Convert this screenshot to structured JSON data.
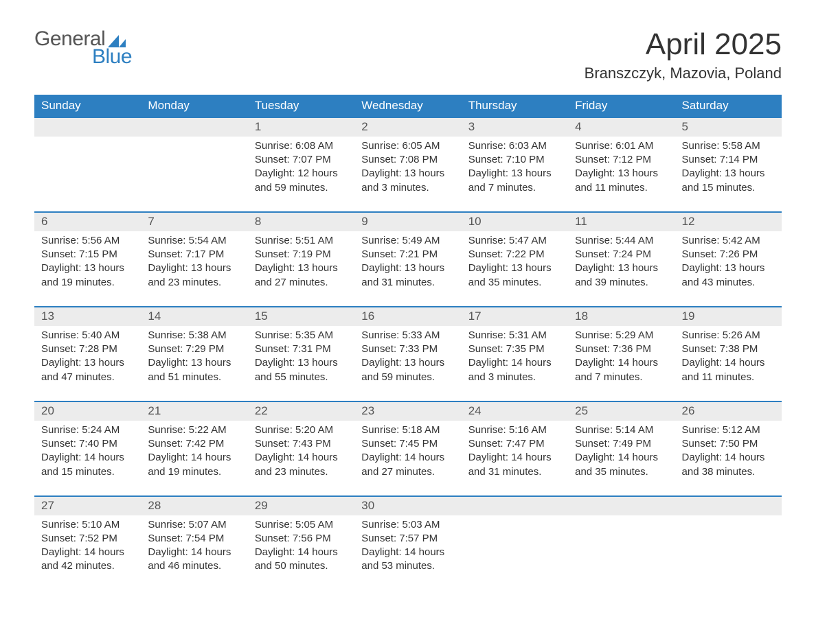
{
  "logo_text1": "General",
  "logo_text2": "Blue",
  "title": "April 2025",
  "location": "Branszczyk, Mazovia, Poland",
  "columns": [
    "Sunday",
    "Monday",
    "Tuesday",
    "Wednesday",
    "Thursday",
    "Friday",
    "Saturday"
  ],
  "colors": {
    "header_bg": "#2d7fc1",
    "header_text": "#ffffff",
    "daynum_bg": "#ececec",
    "border_top": "#2d7fc1",
    "text": "#333333",
    "logo_gray": "#555555",
    "logo_blue": "#2d7fc1",
    "background": "#ffffff"
  },
  "typography": {
    "title_fontsize": 44,
    "location_fontsize": 22,
    "th_fontsize": 17,
    "cell_fontsize": 15
  },
  "weeks": [
    {
      "days": [
        {
          "num": "",
          "sunrise": "",
          "sunset": "",
          "daylight": ""
        },
        {
          "num": "",
          "sunrise": "",
          "sunset": "",
          "daylight": ""
        },
        {
          "num": "1",
          "sunrise": "Sunrise: 6:08 AM",
          "sunset": "Sunset: 7:07 PM",
          "daylight": "Daylight: 12 hours and 59 minutes."
        },
        {
          "num": "2",
          "sunrise": "Sunrise: 6:05 AM",
          "sunset": "Sunset: 7:08 PM",
          "daylight": "Daylight: 13 hours and 3 minutes."
        },
        {
          "num": "3",
          "sunrise": "Sunrise: 6:03 AM",
          "sunset": "Sunset: 7:10 PM",
          "daylight": "Daylight: 13 hours and 7 minutes."
        },
        {
          "num": "4",
          "sunrise": "Sunrise: 6:01 AM",
          "sunset": "Sunset: 7:12 PM",
          "daylight": "Daylight: 13 hours and 11 minutes."
        },
        {
          "num": "5",
          "sunrise": "Sunrise: 5:58 AM",
          "sunset": "Sunset: 7:14 PM",
          "daylight": "Daylight: 13 hours and 15 minutes."
        }
      ]
    },
    {
      "days": [
        {
          "num": "6",
          "sunrise": "Sunrise: 5:56 AM",
          "sunset": "Sunset: 7:15 PM",
          "daylight": "Daylight: 13 hours and 19 minutes."
        },
        {
          "num": "7",
          "sunrise": "Sunrise: 5:54 AM",
          "sunset": "Sunset: 7:17 PM",
          "daylight": "Daylight: 13 hours and 23 minutes."
        },
        {
          "num": "8",
          "sunrise": "Sunrise: 5:51 AM",
          "sunset": "Sunset: 7:19 PM",
          "daylight": "Daylight: 13 hours and 27 minutes."
        },
        {
          "num": "9",
          "sunrise": "Sunrise: 5:49 AM",
          "sunset": "Sunset: 7:21 PM",
          "daylight": "Daylight: 13 hours and 31 minutes."
        },
        {
          "num": "10",
          "sunrise": "Sunrise: 5:47 AM",
          "sunset": "Sunset: 7:22 PM",
          "daylight": "Daylight: 13 hours and 35 minutes."
        },
        {
          "num": "11",
          "sunrise": "Sunrise: 5:44 AM",
          "sunset": "Sunset: 7:24 PM",
          "daylight": "Daylight: 13 hours and 39 minutes."
        },
        {
          "num": "12",
          "sunrise": "Sunrise: 5:42 AM",
          "sunset": "Sunset: 7:26 PM",
          "daylight": "Daylight: 13 hours and 43 minutes."
        }
      ]
    },
    {
      "days": [
        {
          "num": "13",
          "sunrise": "Sunrise: 5:40 AM",
          "sunset": "Sunset: 7:28 PM",
          "daylight": "Daylight: 13 hours and 47 minutes."
        },
        {
          "num": "14",
          "sunrise": "Sunrise: 5:38 AM",
          "sunset": "Sunset: 7:29 PM",
          "daylight": "Daylight: 13 hours and 51 minutes."
        },
        {
          "num": "15",
          "sunrise": "Sunrise: 5:35 AM",
          "sunset": "Sunset: 7:31 PM",
          "daylight": "Daylight: 13 hours and 55 minutes."
        },
        {
          "num": "16",
          "sunrise": "Sunrise: 5:33 AM",
          "sunset": "Sunset: 7:33 PM",
          "daylight": "Daylight: 13 hours and 59 minutes."
        },
        {
          "num": "17",
          "sunrise": "Sunrise: 5:31 AM",
          "sunset": "Sunset: 7:35 PM",
          "daylight": "Daylight: 14 hours and 3 minutes."
        },
        {
          "num": "18",
          "sunrise": "Sunrise: 5:29 AM",
          "sunset": "Sunset: 7:36 PM",
          "daylight": "Daylight: 14 hours and 7 minutes."
        },
        {
          "num": "19",
          "sunrise": "Sunrise: 5:26 AM",
          "sunset": "Sunset: 7:38 PM",
          "daylight": "Daylight: 14 hours and 11 minutes."
        }
      ]
    },
    {
      "days": [
        {
          "num": "20",
          "sunrise": "Sunrise: 5:24 AM",
          "sunset": "Sunset: 7:40 PM",
          "daylight": "Daylight: 14 hours and 15 minutes."
        },
        {
          "num": "21",
          "sunrise": "Sunrise: 5:22 AM",
          "sunset": "Sunset: 7:42 PM",
          "daylight": "Daylight: 14 hours and 19 minutes."
        },
        {
          "num": "22",
          "sunrise": "Sunrise: 5:20 AM",
          "sunset": "Sunset: 7:43 PM",
          "daylight": "Daylight: 14 hours and 23 minutes."
        },
        {
          "num": "23",
          "sunrise": "Sunrise: 5:18 AM",
          "sunset": "Sunset: 7:45 PM",
          "daylight": "Daylight: 14 hours and 27 minutes."
        },
        {
          "num": "24",
          "sunrise": "Sunrise: 5:16 AM",
          "sunset": "Sunset: 7:47 PM",
          "daylight": "Daylight: 14 hours and 31 minutes."
        },
        {
          "num": "25",
          "sunrise": "Sunrise: 5:14 AM",
          "sunset": "Sunset: 7:49 PM",
          "daylight": "Daylight: 14 hours and 35 minutes."
        },
        {
          "num": "26",
          "sunrise": "Sunrise: 5:12 AM",
          "sunset": "Sunset: 7:50 PM",
          "daylight": "Daylight: 14 hours and 38 minutes."
        }
      ]
    },
    {
      "days": [
        {
          "num": "27",
          "sunrise": "Sunrise: 5:10 AM",
          "sunset": "Sunset: 7:52 PM",
          "daylight": "Daylight: 14 hours and 42 minutes."
        },
        {
          "num": "28",
          "sunrise": "Sunrise: 5:07 AM",
          "sunset": "Sunset: 7:54 PM",
          "daylight": "Daylight: 14 hours and 46 minutes."
        },
        {
          "num": "29",
          "sunrise": "Sunrise: 5:05 AM",
          "sunset": "Sunset: 7:56 PM",
          "daylight": "Daylight: 14 hours and 50 minutes."
        },
        {
          "num": "30",
          "sunrise": "Sunrise: 5:03 AM",
          "sunset": "Sunset: 7:57 PM",
          "daylight": "Daylight: 14 hours and 53 minutes."
        },
        {
          "num": "",
          "sunrise": "",
          "sunset": "",
          "daylight": ""
        },
        {
          "num": "",
          "sunrise": "",
          "sunset": "",
          "daylight": ""
        },
        {
          "num": "",
          "sunrise": "",
          "sunset": "",
          "daylight": ""
        }
      ]
    }
  ]
}
